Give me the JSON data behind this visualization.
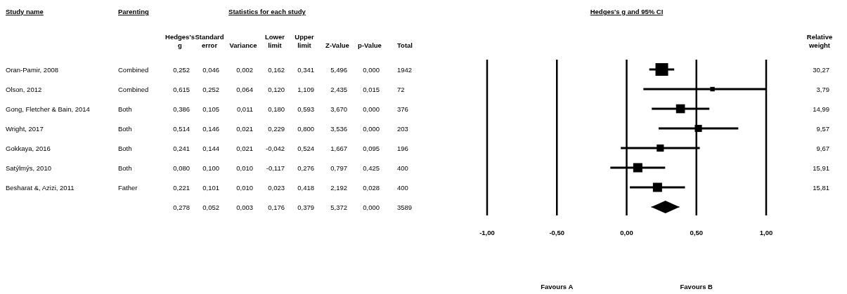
{
  "chart_data": [
    {
      "type": "other",
      "title": "Statistics for each study",
      "ylabel": "Study name",
      "categories": [
        "Parenting",
        "Hedges's g",
        "Standard error",
        "Variance",
        "Lower limit",
        "Upper limit",
        "Z-Value",
        "p-Value",
        "Total",
        "Relative weight"
      ],
      "y_categories": [
        "Oran-Pamir, 2008",
        "Olson, 2012",
        "Gong, Fletcher & Bain, 2014",
        "Wright, 2017",
        "Gokkaya, 2016",
        "Satýlmýs, 2010",
        "Besharat &, Azizi, 2011",
        null
      ],
      "cell_labels": [
        [
          "Combined",
          "0,252",
          "0,046",
          "0,002",
          "0,162",
          "0,341",
          "5,496",
          "0,000",
          "1942",
          "30,27"
        ],
        [
          "Combined",
          "0,615",
          "0,252",
          "0,064",
          "0,120",
          "1,109",
          "2,435",
          "0,015",
          "72",
          "3,79"
        ],
        [
          "Both",
          "0,386",
          "0,105",
          "0,011",
          "0,180",
          "0,593",
          "3,670",
          "0,000",
          "376",
          "14,99"
        ],
        [
          "Both",
          "0,514",
          "0,146",
          "0,021",
          "0,229",
          "0,800",
          "3,536",
          "0,000",
          "203",
          "9,57"
        ],
        [
          "Both",
          "0,241",
          "0,144",
          "0,021",
          "-0,042",
          "0,524",
          "1,667",
          "0,095",
          "196",
          "9,67"
        ],
        [
          "Both",
          "0,080",
          "0,100",
          "0,010",
          "-0,117",
          "0,276",
          "0,797",
          "0,425",
          "400",
          "15,91"
        ],
        [
          "Father",
          "0,221",
          "0,101",
          "0,010",
          "0,023",
          "0,418",
          "2,192",
          "0,028",
          "400",
          "15,81"
        ],
        [
          null,
          "0,278",
          "0,052",
          "0,003",
          "0,176",
          "0,379",
          "5,372",
          "0,000",
          "3589",
          null
        ]
      ]
    },
    {
      "type": "scatter",
      "orientation": "horizontal",
      "title": "Hedges's g and 95% CI",
      "categories": [
        null,
        null,
        null,
        null,
        null,
        null,
        null,
        null
      ],
      "xlim": [
        -1,
        1
      ],
      "xticks": [
        {
          "value": -1,
          "label": "-1,00"
        },
        {
          "value": -0.5,
          "label": "-0,50"
        },
        {
          "value": 0,
          "label": "0,00"
        },
        {
          "value": 0.5,
          "label": "0,50"
        },
        {
          "value": 1,
          "label": "1,00"
        }
      ],
      "grid": "x",
      "tick_labels": "x",
      "annotations": [
        "Favours A",
        "Favours B"
      ],
      "series": [
        {
          "color": "#000000",
          "marker": "square",
          "values": [
            0.252,
            0.615,
            0.386,
            0.514,
            0.241,
            0.08,
            0.221,
            null
          ],
          "errors": [
            [
              0.162,
              0.341
            ],
            [
              0.12,
              1
            ],
            [
              0.18,
              0.593
            ],
            [
              0.229,
              0.8
            ],
            [
              -0.042,
              0.524
            ],
            [
              -0.117,
              0.276
            ],
            [
              0.023,
              0.418
            ],
            null
          ],
          "sizes": [
            1,
            0.125,
            0.495,
            0.316,
            0.319,
            0.526,
            0.522,
            null
          ]
        },
        {
          "color": "#000000",
          "marker": "diamond",
          "values": [
            null,
            null,
            null,
            null,
            null,
            null,
            null,
            0.278
          ],
          "errors": [
            null,
            null,
            null,
            null,
            null,
            null,
            null,
            [
              0.176,
              0.379
            ]
          ]
        }
      ]
    }
  ]
}
